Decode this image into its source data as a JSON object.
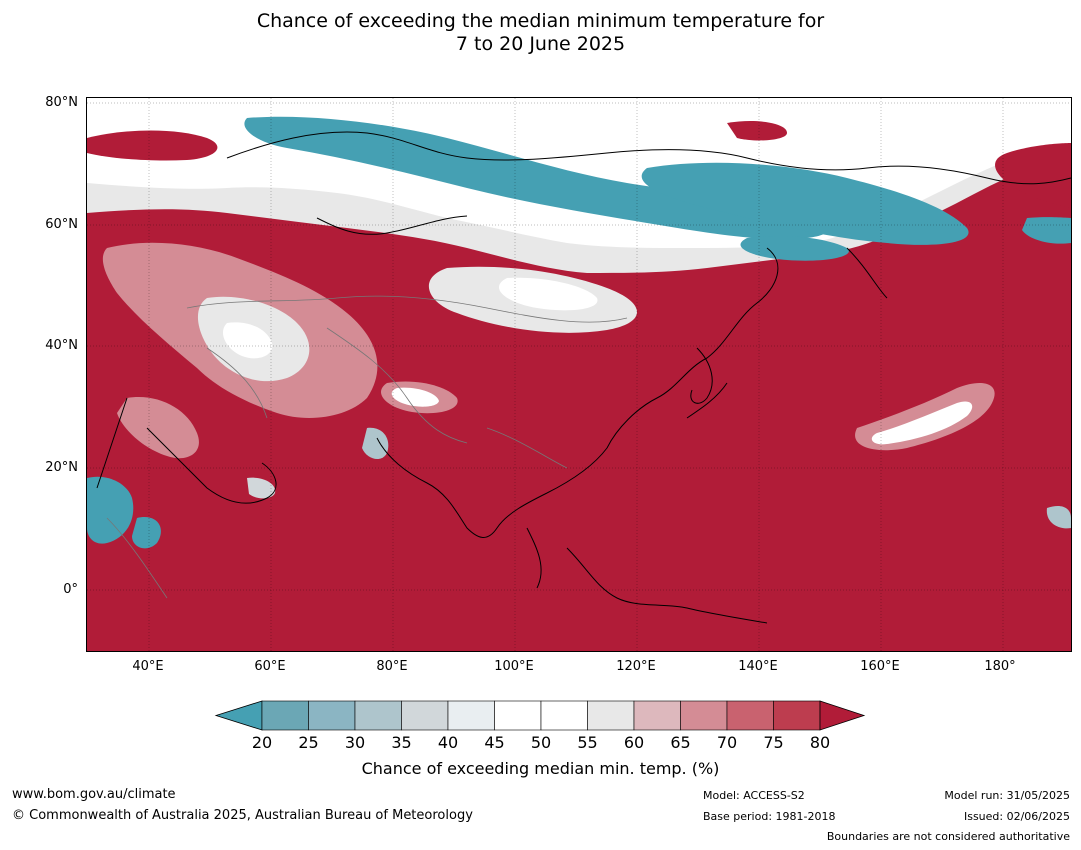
{
  "title": {
    "line1": "Chance of exceeding the median minimum temperature for",
    "line2": "7 to 20 June 2025"
  },
  "map": {
    "lat_labels": [
      "80°N",
      "60°N",
      "40°N",
      "20°N",
      "0°"
    ],
    "lon_labels": [
      "40°E",
      "60°E",
      "80°E",
      "100°E",
      "120°E",
      "140°E",
      "160°E",
      "180°"
    ],
    "extent": {
      "lon": [
        30,
        191
      ],
      "lat": [
        -10,
        80
      ]
    }
  },
  "colorbar": {
    "ticks": [
      "20",
      "25",
      "30",
      "35",
      "40",
      "45",
      "50",
      "55",
      "60",
      "65",
      "70",
      "75",
      "80"
    ],
    "colors": [
      "#6ba7b5",
      "#8bb5c3",
      "#aec5cc",
      "#d1d7da",
      "#e9eef1",
      "#ffffff",
      "#ffffff",
      "#e8e8e8",
      "#ddb8bd",
      "#d48c95",
      "#c9626f",
      "#bd3d4f"
    ],
    "under_color": "#45a0b3",
    "over_color": "#b11c38",
    "label": "Chance of exceeding median min. temp. (%)"
  },
  "footer": {
    "url": "www.bom.gov.au/climate",
    "copyright": "© Commonwealth of Australia 2025, Australian Bureau of Meteorology",
    "model": "Model: ACCESS-S2",
    "base_period": "Base period: 1981-2018",
    "model_run": "Model run: 31/05/2025",
    "issued": "Issued: 02/06/2025",
    "disclaimer": "Boundaries are not considered authoritative"
  }
}
